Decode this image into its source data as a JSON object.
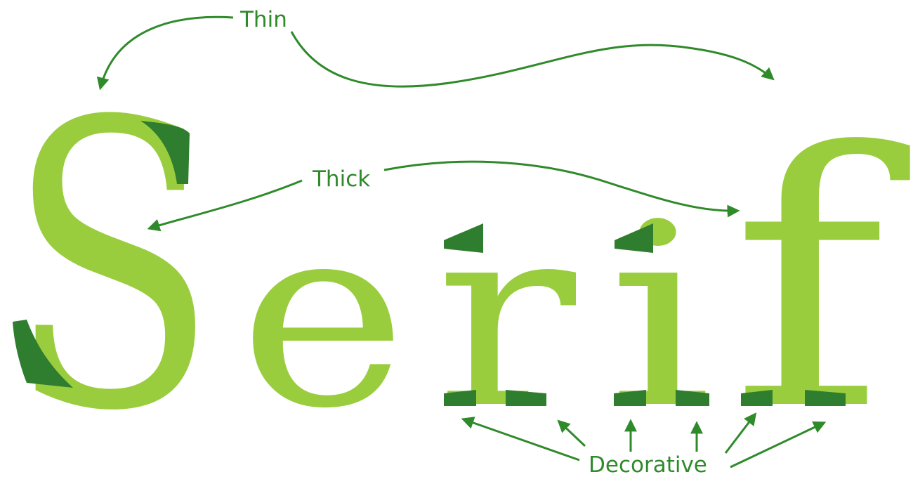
{
  "word": {
    "letters": [
      "S",
      "e",
      "r",
      "i",
      "f"
    ]
  },
  "labels": {
    "thin": "Thin",
    "thick": "Thick",
    "decorative": "Decorative"
  },
  "colors": {
    "letter_fill": "#9acd3e",
    "accent_fill": "#2f7d2f",
    "annotation": "#2f8a2a",
    "background": "#ffffff"
  }
}
